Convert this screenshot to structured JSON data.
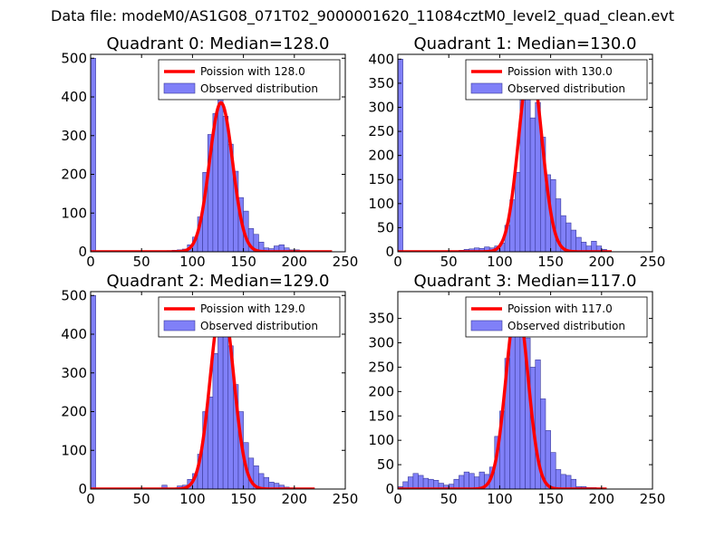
{
  "figure": {
    "suptitle": "Data file: modeM0/AS1G08_071T02_9000001620_11084cztM0_level2_quad_clean.evt"
  },
  "colors": {
    "bar_fill": "#8080f8",
    "bar_edge": "#3a3a9a",
    "fit_line": "#ff0000"
  },
  "chart_data": [
    {
      "type": "bar",
      "title": "Quadrant 0: Median=128.0",
      "xlim": [
        0,
        250
      ],
      "ylim": [
        0,
        510
      ],
      "xticks": [
        0,
        50,
        100,
        150,
        200,
        250
      ],
      "yticks": [
        0,
        100,
        200,
        300,
        400,
        500
      ],
      "legend": [
        "Poission with 128.0",
        "Observed distribution"
      ],
      "fit": {
        "label": "Poission with 128.0",
        "mean": 128.0,
        "peak": 385,
        "x_range": [
          0,
          237
        ]
      },
      "bins": [
        [
          0,
          500
        ],
        [
          70,
          2
        ],
        [
          75,
          3
        ],
        [
          80,
          4
        ],
        [
          85,
          5
        ],
        [
          90,
          7
        ],
        [
          95,
          18
        ],
        [
          100,
          38
        ],
        [
          105,
          90
        ],
        [
          110,
          205
        ],
        [
          115,
          303
        ],
        [
          120,
          357
        ],
        [
          125,
          405
        ],
        [
          130,
          350
        ],
        [
          135,
          278
        ],
        [
          140,
          208
        ],
        [
          145,
          140
        ],
        [
          150,
          105
        ],
        [
          155,
          60
        ],
        [
          160,
          45
        ],
        [
          165,
          25
        ],
        [
          170,
          10
        ],
        [
          175,
          8
        ],
        [
          180,
          15
        ],
        [
          185,
          18
        ],
        [
          190,
          10
        ],
        [
          195,
          5
        ],
        [
          200,
          5
        ]
      ]
    },
    {
      "type": "bar",
      "title": "Quadrant 1: Median=130.0",
      "xlim": [
        0,
        250
      ],
      "ylim": [
        0,
        410
      ],
      "xticks": [
        0,
        50,
        100,
        150,
        200,
        250
      ],
      "yticks": [
        0,
        50,
        100,
        150,
        200,
        250,
        300,
        350,
        400
      ],
      "legend": [
        "Poission with 130.0",
        "Observed distribution"
      ],
      "fit": {
        "label": "Poission with 130.0",
        "mean": 130.0,
        "peak": 390,
        "x_range": [
          0,
          210
        ]
      },
      "bins": [
        [
          0,
          400
        ],
        [
          55,
          2
        ],
        [
          60,
          3
        ],
        [
          65,
          5
        ],
        [
          70,
          6
        ],
        [
          75,
          8
        ],
        [
          80,
          7
        ],
        [
          85,
          10
        ],
        [
          90,
          8
        ],
        [
          95,
          12
        ],
        [
          100,
          18
        ],
        [
          105,
          55
        ],
        [
          110,
          108
        ],
        [
          115,
          165
        ],
        [
          120,
          323
        ],
        [
          125,
          360
        ],
        [
          130,
          278
        ],
        [
          135,
          310
        ],
        [
          140,
          238
        ],
        [
          145,
          160
        ],
        [
          150,
          150
        ],
        [
          155,
          110
        ],
        [
          160,
          75
        ],
        [
          165,
          60
        ],
        [
          170,
          45
        ],
        [
          175,
          30
        ],
        [
          180,
          20
        ],
        [
          185,
          12
        ],
        [
          190,
          22
        ],
        [
          195,
          12
        ],
        [
          200,
          5
        ]
      ]
    },
    {
      "type": "bar",
      "title": "Quadrant 2: Median=129.0",
      "xlim": [
        0,
        250
      ],
      "ylim": [
        0,
        510
      ],
      "xticks": [
        0,
        50,
        100,
        150,
        200,
        250
      ],
      "yticks": [
        0,
        100,
        200,
        300,
        400,
        500
      ],
      "legend": [
        "Poission with 129.0",
        "Observed distribution"
      ],
      "fit": {
        "label": "Poission with 129.0",
        "mean": 129.0,
        "peak": 485,
        "x_range": [
          0,
          220
        ]
      },
      "bins": [
        [
          0,
          500
        ],
        [
          70,
          10
        ],
        [
          85,
          8
        ],
        [
          90,
          10
        ],
        [
          95,
          25
        ],
        [
          100,
          40
        ],
        [
          105,
          90
        ],
        [
          110,
          200
        ],
        [
          115,
          238
        ],
        [
          120,
          350
        ],
        [
          125,
          440
        ],
        [
          130,
          405
        ],
        [
          135,
          370
        ],
        [
          140,
          270
        ],
        [
          145,
          200
        ],
        [
          150,
          120
        ],
        [
          155,
          80
        ],
        [
          160,
          60
        ],
        [
          165,
          40
        ],
        [
          170,
          30
        ],
        [
          175,
          18
        ],
        [
          180,
          15
        ],
        [
          185,
          10
        ],
        [
          190,
          5
        ],
        [
          195,
          3
        ]
      ]
    },
    {
      "type": "bar",
      "title": "Quadrant 3: Median=117.0",
      "xlim": [
        0,
        250
      ],
      "ylim": [
        0,
        405
      ],
      "xticks": [
        0,
        50,
        100,
        150,
        200,
        250
      ],
      "yticks": [
        0,
        50,
        100,
        150,
        200,
        250,
        300,
        350
      ],
      "legend": [
        "Poission with 117.0",
        "Observed distribution"
      ],
      "fit": {
        "label": "Poission with 117.0",
        "mean": 117.0,
        "peak": 380,
        "x_range": [
          0,
          205
        ]
      },
      "bins": [
        [
          0,
          5
        ],
        [
          5,
          15
        ],
        [
          10,
          25
        ],
        [
          15,
          32
        ],
        [
          20,
          28
        ],
        [
          25,
          22
        ],
        [
          30,
          20
        ],
        [
          35,
          18
        ],
        [
          40,
          12
        ],
        [
          45,
          8
        ],
        [
          50,
          10
        ],
        [
          55,
          20
        ],
        [
          60,
          28
        ],
        [
          65,
          35
        ],
        [
          70,
          32
        ],
        [
          75,
          25
        ],
        [
          80,
          35
        ],
        [
          85,
          30
        ],
        [
          90,
          45
        ],
        [
          95,
          108
        ],
        [
          100,
          160
        ],
        [
          105,
          268
        ],
        [
          110,
          335
        ],
        [
          115,
          372
        ],
        [
          120,
          360
        ],
        [
          125,
          310
        ],
        [
          130,
          250
        ],
        [
          135,
          265
        ],
        [
          140,
          185
        ],
        [
          145,
          120
        ],
        [
          150,
          75
        ],
        [
          155,
          40
        ],
        [
          160,
          30
        ],
        [
          165,
          28
        ],
        [
          170,
          20
        ],
        [
          175,
          5
        ],
        [
          180,
          5
        ],
        [
          185,
          3
        ],
        [
          190,
          3
        ],
        [
          195,
          2
        ]
      ]
    }
  ]
}
